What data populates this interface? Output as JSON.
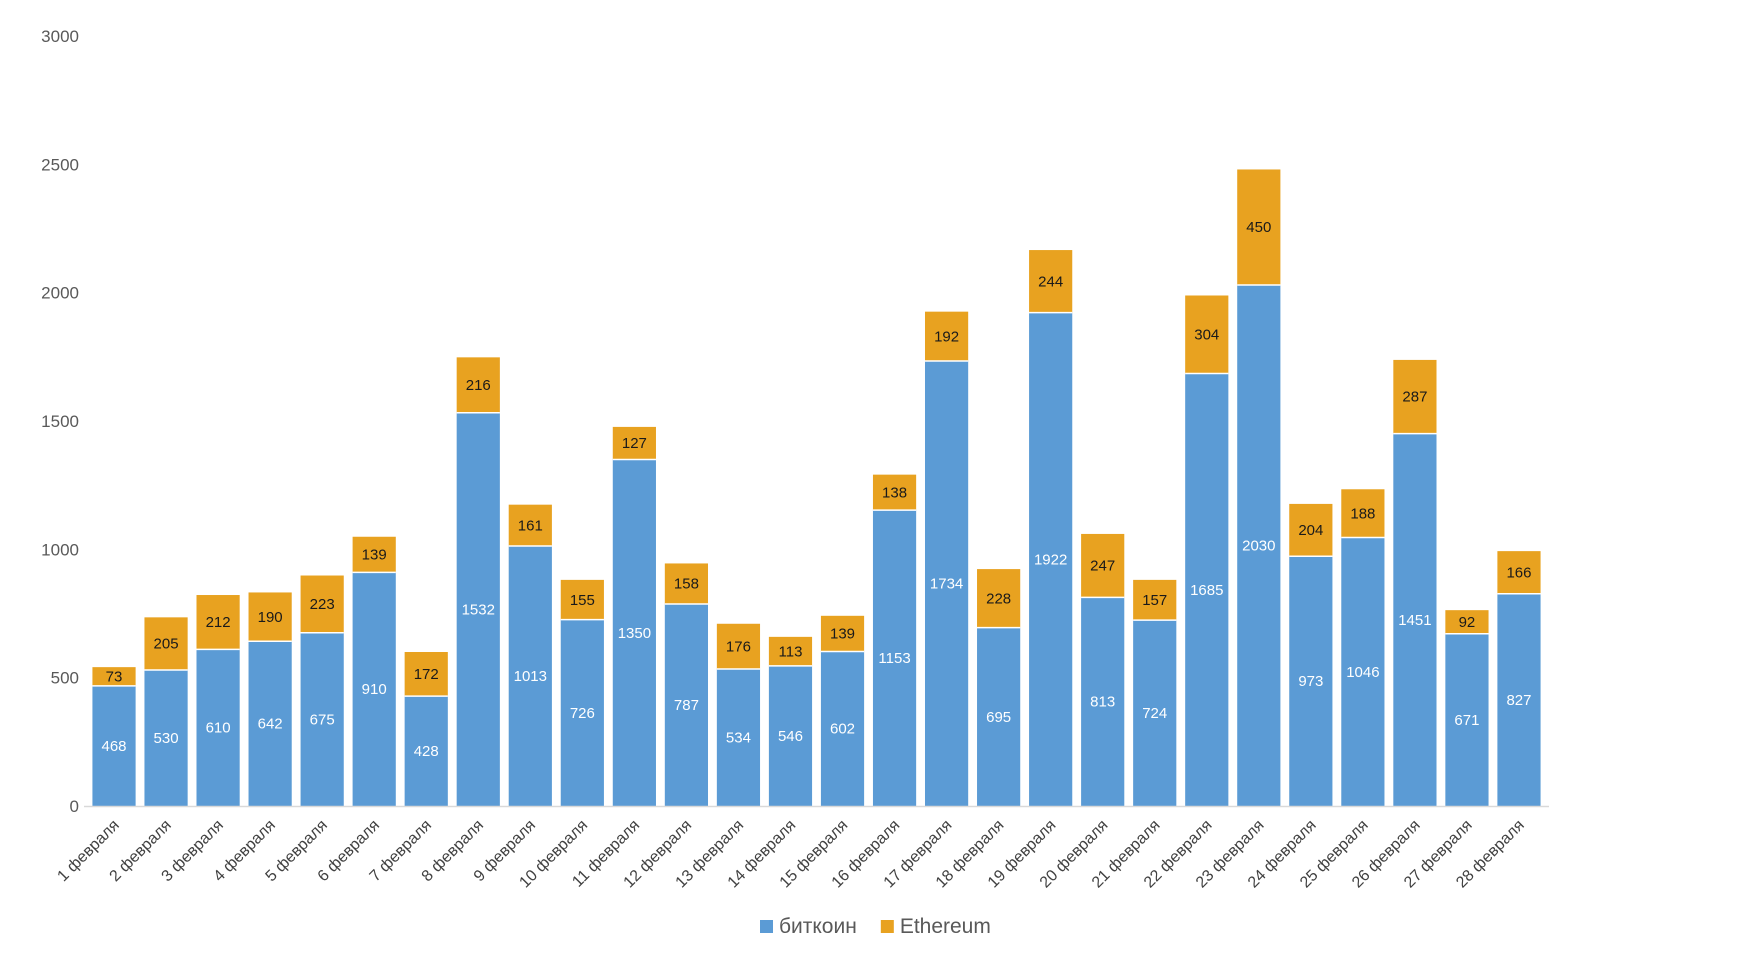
{
  "chart_data": {
    "type": "bar",
    "stacked": true,
    "title": "",
    "xlabel": "",
    "ylabel": "",
    "ylim": [
      0,
      3000
    ],
    "yticks": [
      0,
      500,
      1000,
      1500,
      2000,
      2500,
      3000
    ],
    "grid": false,
    "legend": "bottom",
    "categories": [
      "1 февраля",
      "2 февраля",
      "3 февраля",
      "4 февраля",
      "5 февраля",
      "6 февраля",
      "7 февраля",
      "8 февраля",
      "9 февраля",
      "10 февраля",
      "11 февраля",
      "12 февраля",
      "13 февраля",
      "14 февраля",
      "15 февраля",
      "16 февраля",
      "17 февраля",
      "18 февраля",
      "19 февраля",
      "20 февраля",
      "21 февраля",
      "22 февраля",
      "23 февраля",
      "24 февраля",
      "25 февраля",
      "26 февраля",
      "27 февраля",
      "28 февраля"
    ],
    "series": [
      {
        "name": "биткоин",
        "color": "#5B9BD5",
        "values": [
          468,
          530,
          610,
          642,
          675,
          910,
          428,
          1532,
          1013,
          726,
          1350,
          787,
          534,
          546,
          602,
          1153,
          1734,
          695,
          1922,
          813,
          724,
          1685,
          2030,
          973,
          1046,
          1451,
          671,
          827
        ]
      },
      {
        "name": "Ethereum",
        "color": "#E8A220",
        "values": [
          73,
          205,
          212,
          190,
          223,
          139,
          172,
          216,
          161,
          155,
          127,
          158,
          176,
          113,
          139,
          138,
          192,
          228,
          244,
          247,
          157,
          304,
          450,
          204,
          188,
          287,
          92,
          166
        ]
      }
    ]
  }
}
